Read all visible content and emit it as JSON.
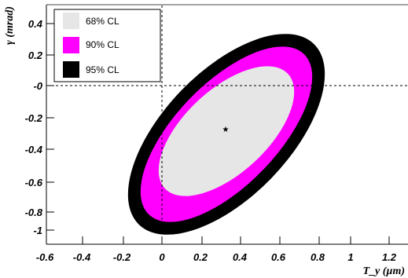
{
  "chart_data": {
    "type": "contour",
    "xlabel": "T_y (µm)",
    "ylabel": "γ (mrad)",
    "xlim": [
      -0.6,
      1.3
    ],
    "ylim": [
      -1.0,
      0.55
    ],
    "x_ticks": [
      "-0.6",
      "-0.4",
      "-0.2",
      "0",
      "0.2",
      "0.4",
      "0.6",
      "0.8",
      "1",
      "1.2"
    ],
    "y_ticks": [
      "-1",
      "-0.8",
      "-0.6",
      "-0.4",
      "-0.2",
      "-0",
      "0.2",
      "0.4"
    ],
    "center": {
      "x": 0.33,
      "y": -0.27
    },
    "reference_lines": {
      "x": 0,
      "y": 0
    },
    "legend_position": "top-left",
    "regions": [
      {
        "name": "95% CL",
        "color": "#000000",
        "x_range": [
          -0.38,
          1.0
        ],
        "y_range": [
          -0.85,
          0.31
        ]
      },
      {
        "name": "90% CL",
        "color": "#ff00ff",
        "x_range": [
          -0.31,
          0.89
        ],
        "y_range": [
          -0.79,
          0.23
        ]
      },
      {
        "name": "68% CL",
        "color": "#e6e6e6",
        "x_range": [
          -0.1,
          0.73
        ],
        "y_range": [
          -0.63,
          0.1
        ]
      }
    ],
    "legend": [
      "68% CL",
      "90% CL",
      "95% CL"
    ]
  }
}
